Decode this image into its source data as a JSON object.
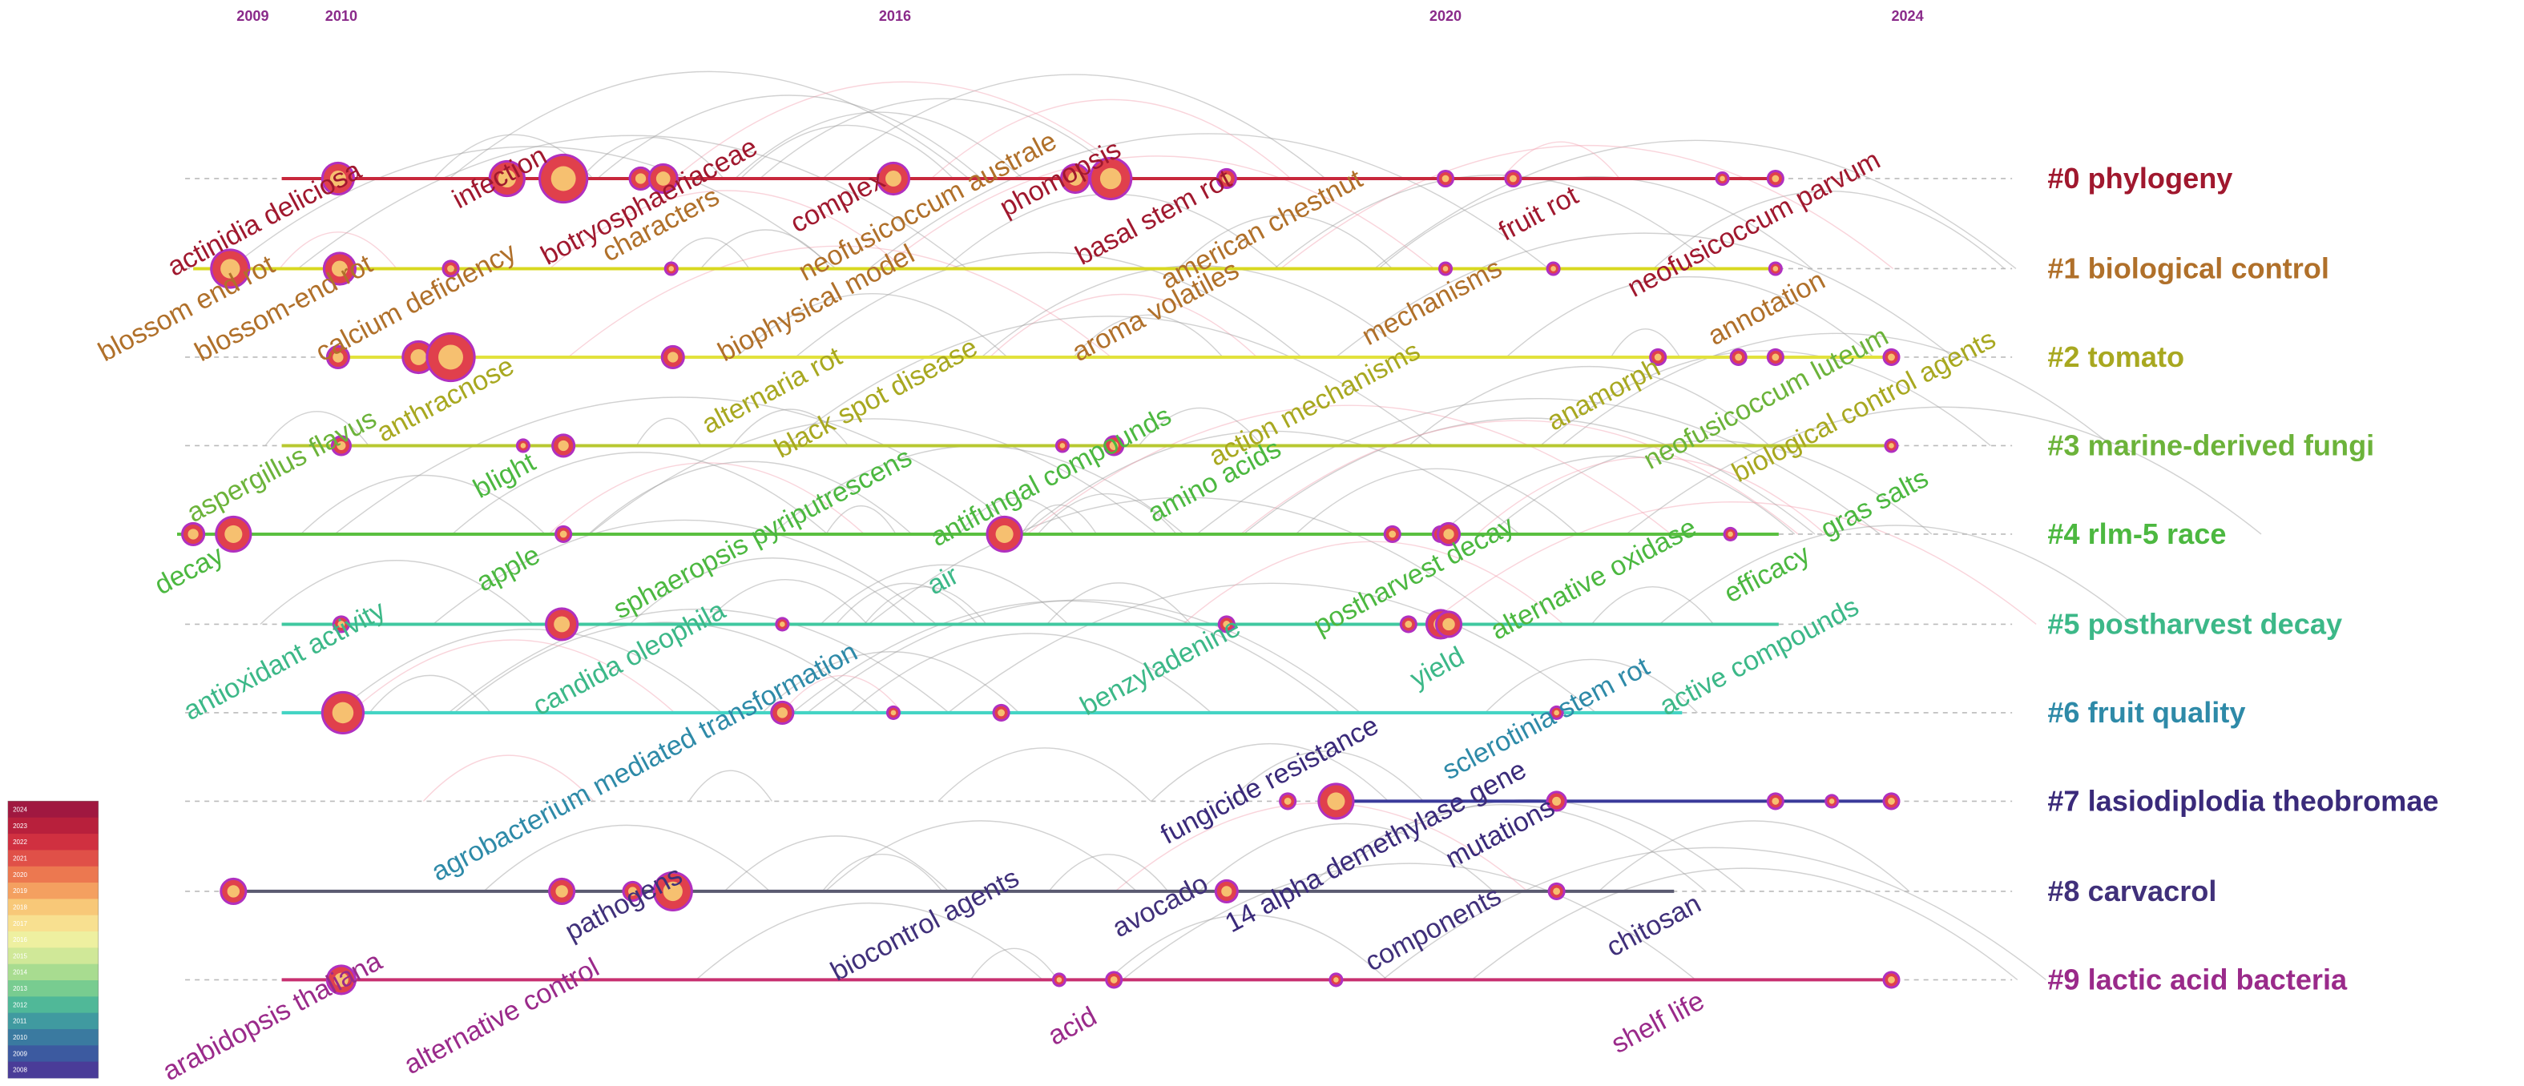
{
  "years": [
    "2009",
    "2010",
    "2016",
    "2020",
    "2024"
  ],
  "clusters": [
    "#0 phylogeny",
    "#1 biological control",
    "#2 tomato",
    "#3 marine-derived fungi",
    "#4 rlm-5  race",
    "#5 postharvest decay",
    "#6 fruit quality",
    "#7 lasiodiplodia theobromae",
    "#8 carvacrol",
    "#9 lactic acid bacteria"
  ],
  "keywords": [
    "actinidia deliciosa",
    "infection",
    "botryosphaeriaceae",
    "characters",
    "complex",
    "neofusicoccum australe",
    "phomopsis",
    "basal stem rot",
    "american chestnut",
    "fruit rot",
    "neofusicoccum parvum",
    "blossom end rot",
    "blossom-end rot",
    "calcium deficiency",
    "biophysical model",
    "aroma volatiles",
    "mechanisms",
    "annotation",
    "anthracnose",
    "alternaria rot",
    "black spot disease",
    "action mechanisms",
    "anamorph",
    "neofusicoccum luteum",
    "biological control agents",
    "aspergillus flavus",
    "blight",
    "sphaeropsis pyriputrescens",
    "antifungal compounds",
    "amino acids",
    "decay",
    "apple",
    "air",
    "postharvest decay",
    "alternative oxidase",
    "gras salts",
    "efficacy",
    "antioxidant activity",
    "candida oleophila",
    "agrobacterium mediated transformation",
    "benzyladenine",
    "yield",
    "active compounds",
    "sclerotinia stem rot",
    "fungicide resistance",
    "14 alpha demethylase gene",
    "mutations",
    "pathogens",
    "biocontrol agents",
    "avocado",
    "components",
    "chitosan",
    "arabidopsis thaliana",
    "alternative control",
    "acid",
    "shelf life"
  ],
  "legend": [
    "2024",
    "2023",
    "2022",
    "2021",
    "2020",
    "2019",
    "2018",
    "2017",
    "2016",
    "2015",
    "2014",
    "2013",
    "2012",
    "2011",
    "2010",
    "2009",
    "2008"
  ]
}
